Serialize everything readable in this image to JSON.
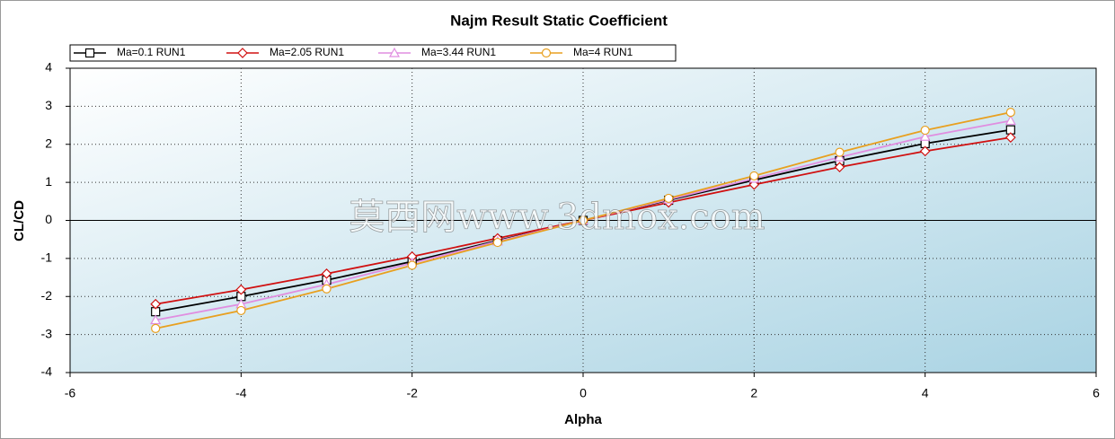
{
  "chart_data": {
    "type": "line",
    "title": "Najm Result Static Coefficient",
    "x_label": "Alpha",
    "y_label": "CL/CD",
    "watermark": "莫西网www.3dmox.com",
    "x": [
      -5,
      -4,
      -3,
      -2,
      -1,
      0,
      1,
      2,
      3,
      4,
      5
    ],
    "series": [
      {
        "name": "Ma=0.1 RUN1",
        "color": "#000000",
        "marker": "square",
        "values": [
          -2.4,
          -2.0,
          -1.57,
          -1.08,
          -0.53,
          0,
          0.53,
          1.06,
          1.57,
          2.02,
          2.38
        ]
      },
      {
        "name": "Ma=2.05 RUN1",
        "color": "#d01010",
        "marker": "diamond",
        "values": [
          -2.2,
          -1.82,
          -1.4,
          -0.95,
          -0.47,
          0,
          0.47,
          0.94,
          1.4,
          1.82,
          2.18
        ]
      },
      {
        "name": "Ma=3.44 RUN1",
        "color": "#e08ee0",
        "marker": "triangle",
        "values": [
          -2.62,
          -2.2,
          -1.68,
          -1.12,
          -0.55,
          0,
          0.55,
          1.1,
          1.66,
          2.2,
          2.62
        ]
      },
      {
        "name": "Ma=4 RUN1",
        "color": "#e8a020",
        "marker": "circle",
        "values": [
          -2.84,
          -2.37,
          -1.8,
          -1.18,
          -0.58,
          0,
          0.58,
          1.17,
          1.79,
          2.37,
          2.84
        ]
      }
    ],
    "xlim": [
      -6,
      6
    ],
    "xticks": [
      -6,
      -4,
      -2,
      0,
      2,
      4,
      6
    ],
    "ylim": [
      -4,
      4
    ],
    "yticks": [
      -4,
      -3,
      -2,
      -1,
      0,
      1,
      2,
      3,
      4
    ],
    "grid": true,
    "legend": "top"
  }
}
